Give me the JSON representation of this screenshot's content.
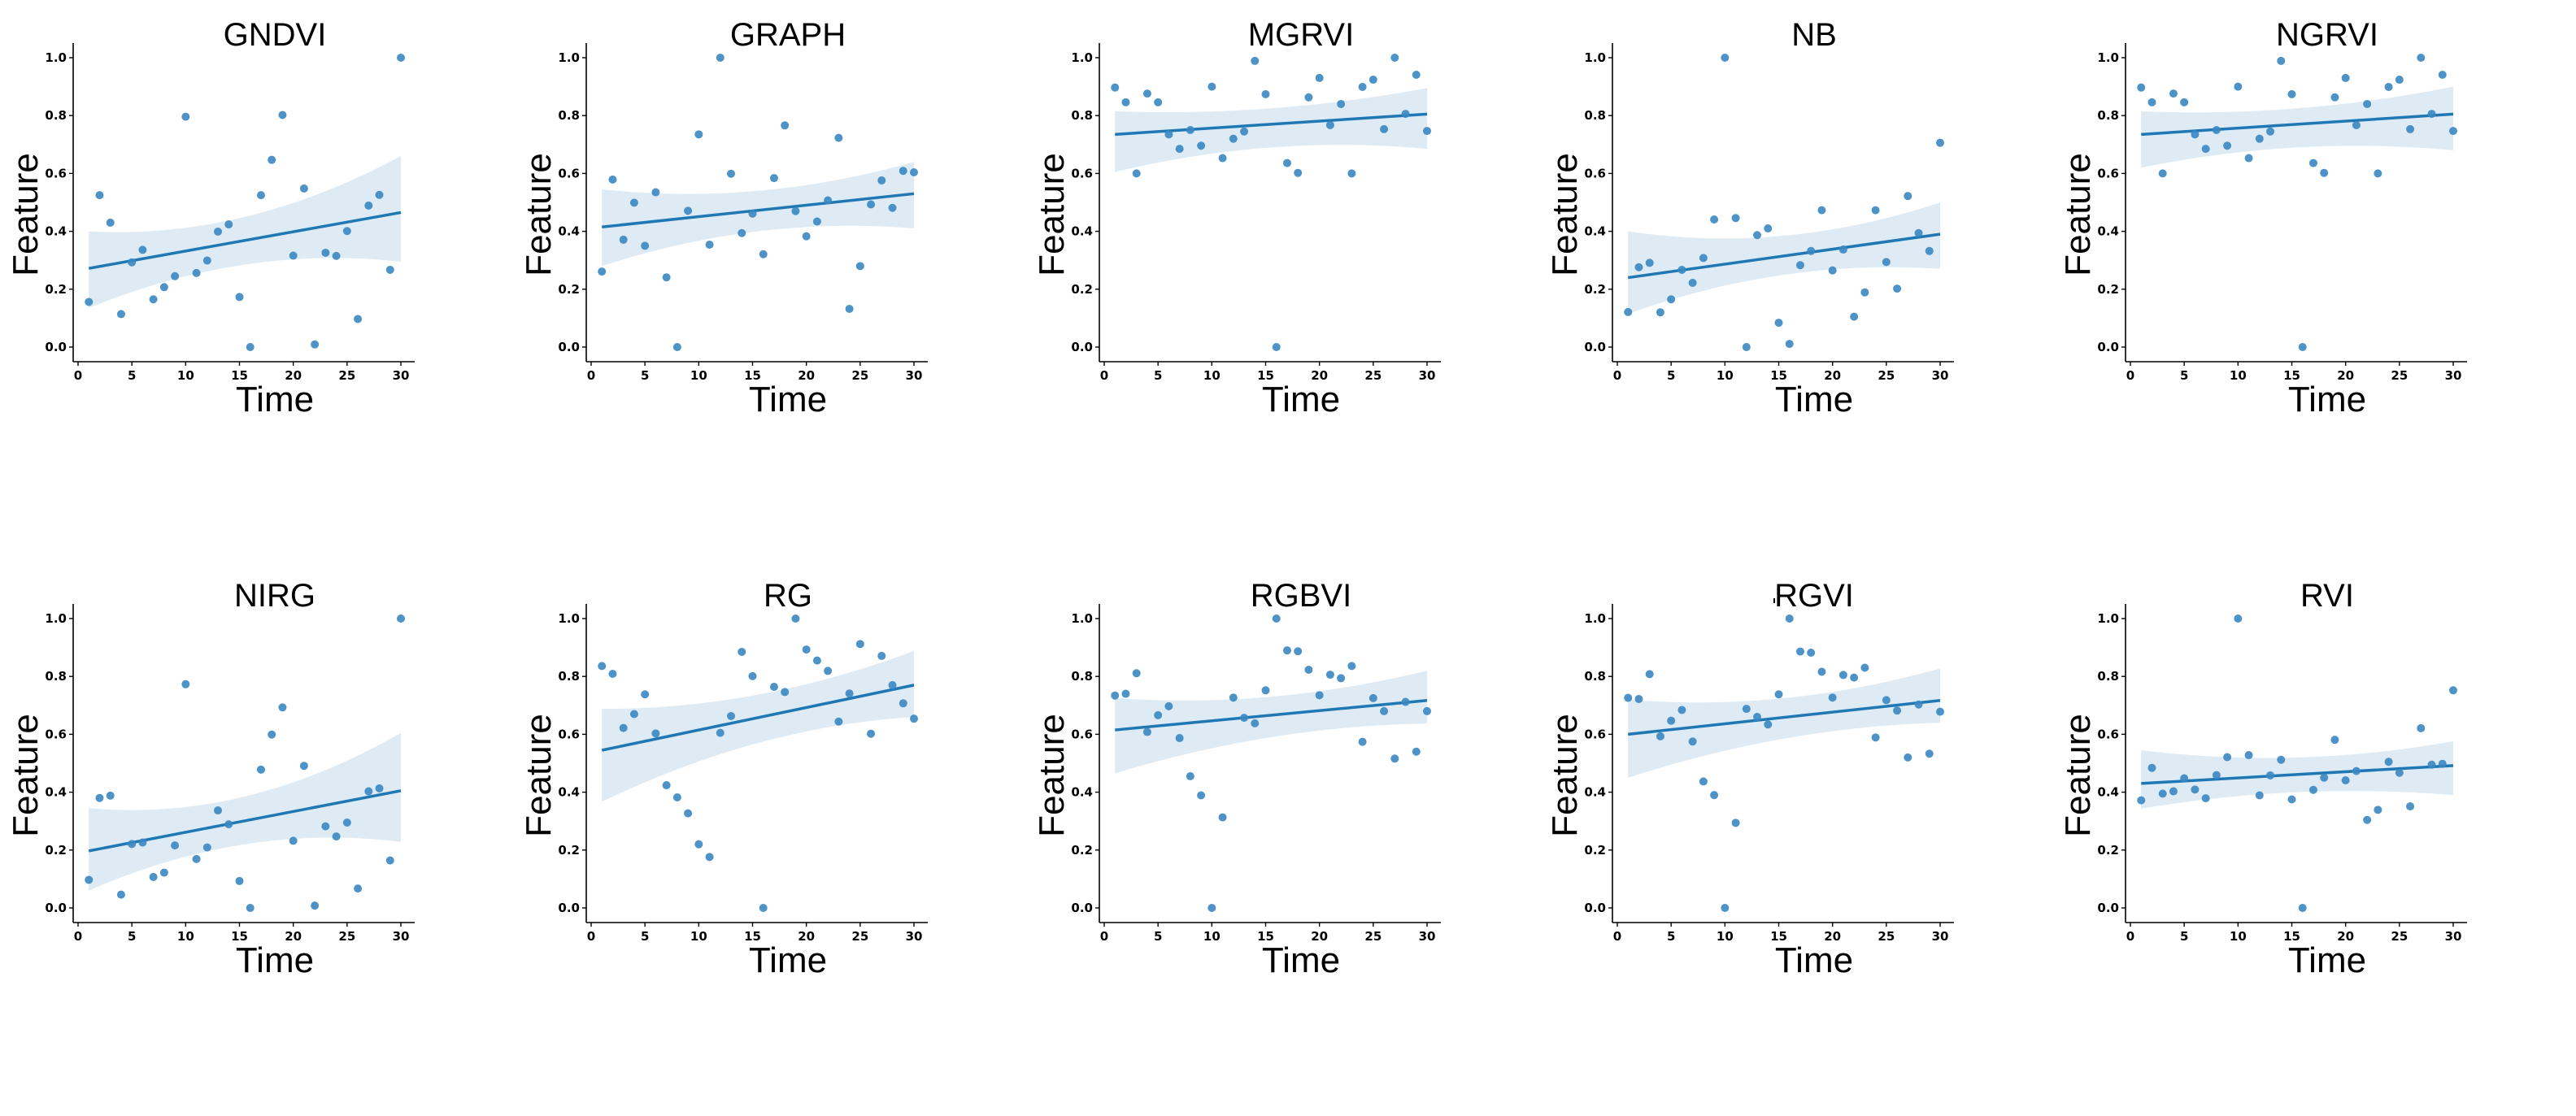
{
  "chart_data": {
    "type": "scatter",
    "layout": "2x5 grid of regression plots",
    "xlabel": "Time",
    "ylabel": "Feature",
    "xlim": [
      -0.5,
      31.5
    ],
    "ylim": [
      -0.05,
      1.05
    ],
    "x_ticks": [
      "0",
      "5",
      "10",
      "15",
      "20",
      "25",
      "30"
    ],
    "x_tick_values": [
      0,
      5,
      10,
      15,
      20,
      25,
      30
    ],
    "y_ticks": [
      "0.0",
      "0.2",
      "0.4",
      "0.6",
      "0.8",
      "1.0"
    ],
    "y_tick_values": [
      0,
      0.2,
      0.4,
      0.6,
      0.8,
      1.0
    ],
    "grid": false,
    "colors": {
      "points": "#3a87c2",
      "fit": "#1f77b4",
      "ci": "#1f77b4"
    },
    "x": [
      1,
      2,
      3,
      4,
      5,
      6,
      7,
      8,
      9,
      10,
      11,
      12,
      13,
      14,
      15,
      16,
      17,
      18,
      19,
      20,
      21,
      22,
      23,
      24,
      25,
      26,
      27,
      28,
      29,
      30
    ],
    "panels": [
      {
        "title": "GNDVI",
        "y": [
          0.156,
          0.525,
          0.43,
          0.114,
          0.293,
          0.336,
          0.165,
          0.207,
          0.245,
          0.796,
          0.256,
          0.299,
          0.399,
          0.424,
          0.173,
          0.0,
          0.525,
          0.647,
          0.802,
          0.316,
          0.548,
          0.009,
          0.326,
          0.315,
          0.401,
          0.097,
          0.489,
          0.526,
          0.267,
          1.0
        ],
        "fit": [
          0.272,
          0.465
        ],
        "ci_x": [
          1,
          15.5,
          30
        ],
        "ci_lower": [
          0.135,
          0.285,
          0.295
        ],
        "ci_upper": [
          0.4,
          0.45,
          0.66
        ]
      },
      {
        "title": "GRAPH",
        "y": [
          0.261,
          0.579,
          0.371,
          0.499,
          0.35,
          0.535,
          0.241,
          0.0,
          0.471,
          0.735,
          0.354,
          1.0,
          0.599,
          0.394,
          0.461,
          0.321,
          0.584,
          0.766,
          0.47,
          0.383,
          0.434,
          0.507,
          0.723,
          0.132,
          0.28,
          0.493,
          0.576,
          0.481,
          0.609,
          0.604
        ],
        "fit": [
          0.415,
          0.53
        ],
        "ci_x": [
          1,
          15.5,
          30
        ],
        "ci_lower": [
          0.28,
          0.4,
          0.41
        ],
        "ci_upper": [
          0.545,
          0.54,
          0.64
        ]
      },
      {
        "title": "MGRVI",
        "y": [
          0.897,
          0.846,
          0.6,
          0.876,
          0.846,
          0.735,
          0.685,
          0.75,
          0.696,
          0.9,
          0.653,
          0.72,
          0.745,
          0.989,
          0.874,
          0.0,
          0.636,
          0.602,
          0.863,
          0.93,
          0.767,
          0.84,
          0.6,
          0.899,
          0.924,
          0.753,
          1.0,
          0.806,
          0.941,
          0.747
        ],
        "fit": [
          0.735,
          0.805
        ],
        "ci_x": [
          1,
          15.5,
          30
        ],
        "ci_lower": [
          0.605,
          0.69,
          0.685
        ],
        "ci_upper": [
          0.815,
          0.825,
          0.895
        ]
      },
      {
        "title": "NB",
        "y": [
          0.121,
          0.276,
          0.291,
          0.12,
          0.165,
          0.267,
          0.222,
          0.308,
          0.441,
          1.0,
          0.446,
          0.0,
          0.387,
          0.41,
          0.084,
          0.011,
          0.283,
          0.332,
          0.473,
          0.265,
          0.337,
          0.105,
          0.189,
          0.473,
          0.294,
          0.202,
          0.522,
          0.394,
          0.332,
          0.706
        ],
        "fit": [
          0.24,
          0.39
        ],
        "ci_x": [
          1,
          15.5,
          30
        ],
        "ci_lower": [
          0.115,
          0.25,
          0.27
        ],
        "ci_upper": [
          0.4,
          0.385,
          0.5
        ]
      },
      {
        "title": "NGRVI",
        "y": [
          0.897,
          0.846,
          0.6,
          0.876,
          0.846,
          0.735,
          0.685,
          0.75,
          0.696,
          0.9,
          0.653,
          0.72,
          0.745,
          0.989,
          0.874,
          0.0,
          0.636,
          0.602,
          0.863,
          0.93,
          0.767,
          0.84,
          0.6,
          0.899,
          0.924,
          0.753,
          1.0,
          0.806,
          0.941,
          0.747
        ],
        "fit": [
          0.735,
          0.805
        ],
        "ci_x": [
          1,
          15.5,
          30
        ],
        "ci_lower": [
          0.62,
          0.69,
          0.68
        ],
        "ci_upper": [
          0.815,
          0.825,
          0.9
        ]
      },
      {
        "title": "NIRG",
        "y": [
          0.097,
          0.38,
          0.388,
          0.046,
          0.221,
          0.226,
          0.107,
          0.122,
          0.216,
          0.773,
          0.169,
          0.209,
          0.337,
          0.289,
          0.093,
          0.0,
          0.478,
          0.599,
          0.693,
          0.232,
          0.491,
          0.008,
          0.282,
          0.247,
          0.295,
          0.067,
          0.403,
          0.413,
          0.164,
          1.0
        ],
        "fit": [
          0.197,
          0.405
        ],
        "ci_x": [
          1,
          15.5,
          30
        ],
        "ci_lower": [
          0.06,
          0.22,
          0.228
        ],
        "ci_upper": [
          0.345,
          0.385,
          0.605
        ]
      },
      {
        "title": "RG",
        "y": [
          0.836,
          0.809,
          0.622,
          0.67,
          0.738,
          0.603,
          0.424,
          0.382,
          0.327,
          0.22,
          0.176,
          0.605,
          0.663,
          0.885,
          0.801,
          0.0,
          0.764,
          0.746,
          1.0,
          0.893,
          0.855,
          0.819,
          0.644,
          0.741,
          0.912,
          0.602,
          0.871,
          0.77,
          0.707,
          0.654
        ],
        "fit": [
          0.545,
          0.77
        ],
        "ci_x": [
          1,
          15.5,
          30
        ],
        "ci_lower": [
          0.367,
          0.57,
          0.66
        ],
        "ci_upper": [
          0.688,
          0.737,
          0.888
        ]
      },
      {
        "title": "RGBVI",
        "y": [
          0.734,
          0.74,
          0.811,
          0.608,
          0.666,
          0.697,
          0.587,
          0.455,
          0.389,
          0.0,
          0.313,
          0.727,
          0.657,
          0.638,
          0.752,
          1.0,
          0.89,
          0.887,
          0.823,
          0.735,
          0.806,
          0.794,
          0.836,
          0.574,
          0.725,
          0.68,
          0.516,
          0.712,
          0.54,
          0.68
        ],
        "fit": [
          0.615,
          0.717
        ],
        "ci_x": [
          1,
          15.5,
          30
        ],
        "ci_lower": [
          0.465,
          0.59,
          0.637
        ],
        "ci_upper": [
          0.725,
          0.73,
          0.82
        ]
      },
      {
        "title": "RGVI",
        "y": [
          0.726,
          0.722,
          0.808,
          0.593,
          0.647,
          0.684,
          0.575,
          0.437,
          0.39,
          0.0,
          0.294,
          0.688,
          0.66,
          0.634,
          0.738,
          1.0,
          0.886,
          0.882,
          0.816,
          0.727,
          0.805,
          0.796,
          0.83,
          0.589,
          0.718,
          0.682,
          0.52,
          0.703,
          0.533,
          0.678
        ],
        "fit": [
          0.6,
          0.717
        ],
        "ci_x": [
          1,
          15.5,
          30
        ],
        "ci_lower": [
          0.45,
          0.585,
          0.64
        ],
        "ci_upper": [
          0.72,
          0.725,
          0.828
        ]
      },
      {
        "title": "RVI",
        "y": [
          0.372,
          0.484,
          0.395,
          0.403,
          0.448,
          0.409,
          0.379,
          0.459,
          0.521,
          1.0,
          0.528,
          0.389,
          0.458,
          0.512,
          0.375,
          0.0,
          0.408,
          0.45,
          0.581,
          0.441,
          0.473,
          0.304,
          0.339,
          0.505,
          0.467,
          0.351,
          0.621,
          0.495,
          0.498,
          0.752
        ],
        "fit": [
          0.43,
          0.492
        ],
        "ci_x": [
          1,
          15.5,
          30
        ],
        "ci_lower": [
          0.343,
          0.4,
          0.39
        ],
        "ci_upper": [
          0.545,
          0.52,
          0.576
        ]
      }
    ]
  }
}
